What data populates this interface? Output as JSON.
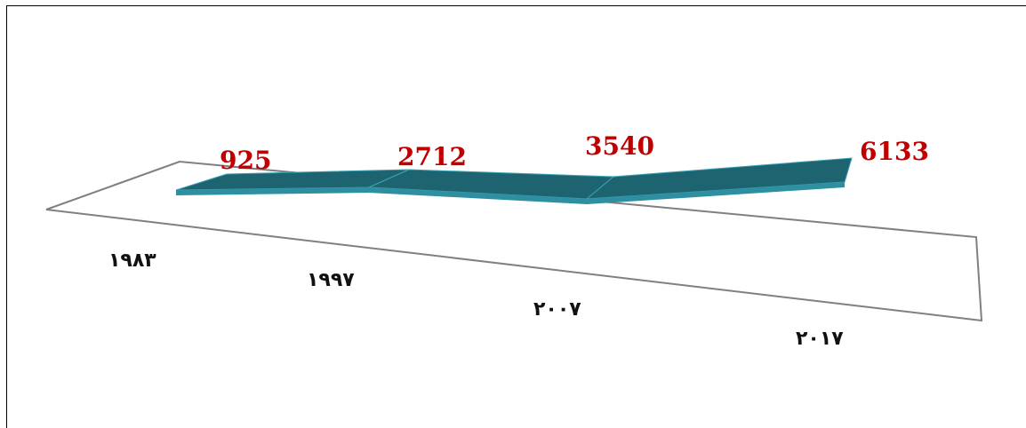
{
  "chart_data": {
    "type": "line",
    "style": "3d-ribbon",
    "categories": [
      "١٩٨٣",
      "١٩٩٧",
      "٢٠٠٧",
      "٢٠١٧"
    ],
    "values": [
      925,
      2712,
      3540,
      6133
    ],
    "data_labels": [
      "925",
      "2712",
      "3540",
      "6133"
    ],
    "title": "",
    "xlabel": "",
    "ylabel": "",
    "grid": false,
    "legend": "none"
  },
  "colors": {
    "ribbon_top": "#1e6470",
    "ribbon_front": "#2e8fa0",
    "ribbon_edge": "#3aa3b5",
    "label": "#c00000",
    "floor": "#808080"
  }
}
